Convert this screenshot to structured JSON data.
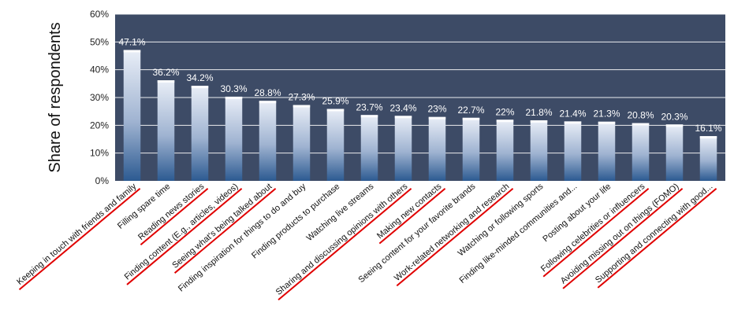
{
  "chart_data": {
    "type": "bar",
    "ylabel": "Share of respondents",
    "ylim": [
      0,
      60
    ],
    "y_ticks": [
      "0%",
      "10%",
      "20%",
      "30%",
      "40%",
      "50%",
      "60%"
    ],
    "grid": true,
    "colors": {
      "plot_background": "#3d4b66",
      "bar_top": "#e9eef7",
      "bar_bottom": "#2c5a91",
      "gridline": "#ffffff",
      "underline": "#e00000"
    },
    "categories": [
      "Keeping in touch with friends and family",
      "Filling spare time",
      "Reading news stories",
      "Finding content (E.g., articles, videos)",
      "Seeing what's being talked about",
      "Finding inspiration for things to do and buy",
      "Finding products to purchase",
      "Watching live streams",
      "Sharing and discussing opinions with others",
      "Making new contacts",
      "Seeing content for your favorite brands",
      "Work-related networking and research",
      "Watching or following sports",
      "Finding like-minded communities and...",
      "Posting about your life",
      "Following celebrities or influencers",
      "Avoiding missing out on things (FOMO)",
      "Supporting and connecting with good..."
    ],
    "values": [
      47.1,
      36.2,
      34.2,
      30.3,
      28.8,
      27.3,
      25.9,
      23.7,
      23.4,
      23,
      22.7,
      22,
      21.8,
      21.4,
      21.3,
      20.8,
      20.3,
      16.1
    ],
    "value_labels": [
      "47.1%",
      "36.2%",
      "34.2%",
      "30.3%",
      "28.8%",
      "27.3%",
      "25.9%",
      "23.7%",
      "23.4%",
      "23%",
      "22.7%",
      "22%",
      "21.8%",
      "21.4%",
      "21.3%",
      "20.8%",
      "20.3%",
      "16.1%"
    ],
    "underlined": [
      true,
      false,
      true,
      true,
      true,
      false,
      false,
      false,
      true,
      true,
      false,
      true,
      false,
      false,
      false,
      true,
      true,
      true
    ]
  }
}
